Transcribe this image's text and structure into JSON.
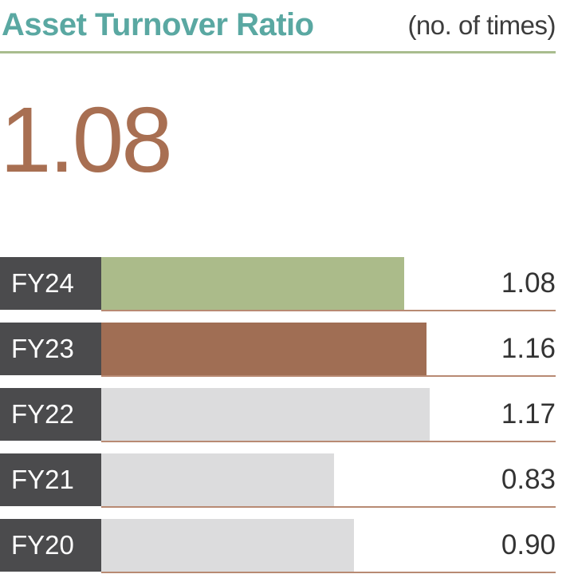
{
  "header": {
    "title": "Asset Turnover Ratio",
    "unit": "(no. of times)"
  },
  "headline_value": "1.08",
  "colors": {
    "title": "#5aa8a2",
    "rule": "#a9bd8e",
    "headline": "#a86f52",
    "label_bg": "#4b4b4d",
    "bar_current": "#abbb8a",
    "bar_previous": "#a06e54",
    "bar_other": "#dcdcdd",
    "baseline": "#b88a73"
  },
  "chart_data": {
    "type": "bar",
    "orientation": "horizontal",
    "categories": [
      "FY24",
      "FY23",
      "FY22",
      "FY21",
      "FY20"
    ],
    "values": [
      1.08,
      1.16,
      1.17,
      0.83,
      0.9
    ],
    "value_labels": [
      "1.08",
      "1.16",
      "1.17",
      "0.83",
      "0.90"
    ],
    "xlim": [
      0,
      1.62
    ],
    "grid": false
  }
}
